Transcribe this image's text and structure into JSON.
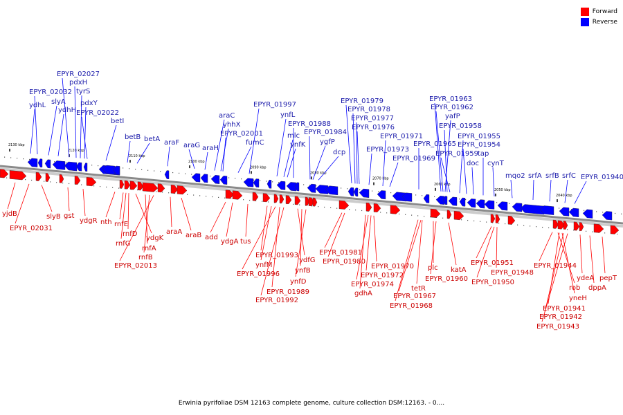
{
  "legend": {
    "forward_label": "Forward",
    "reverse_label": "Reverse",
    "forward_color": "#ff0000",
    "reverse_color": "#0000ff"
  },
  "footer": {
    "caption": "Erwinia pyrifoliae DSM 12163 complete genome, culture collection DSM:12163. - 0...."
  },
  "colors": {
    "axis": "#8a8a8a",
    "forward": "#ff0000",
    "reverse": "#0000ff",
    "forward_label": "#cc0000",
    "reverse_label": "#1a1aaa"
  },
  "ticks": [
    "2130 kbp",
    "2120 kbp",
    "2110 kbp",
    "2100 kbp",
    "2090 kbp",
    "2080 kbp",
    "2070 kbp",
    "2060 kbp",
    "2050 kbp",
    "2040 kbp"
  ],
  "reverse_genes": [
    "ydhL",
    "EPYR_02032",
    "slyA",
    "ydhH",
    "EPYR_02027",
    "pdxH",
    "tyrS",
    "pdxY",
    "EPYR_02022",
    "betI",
    "betB",
    "betA",
    "araF",
    "araG",
    "araH",
    "araC",
    "yhhX",
    "EPYR_02001",
    "fumC",
    "EPYR_01997",
    "ynfL",
    "mlc",
    "ynfK",
    "EPYR_01988",
    "EPYR_01984",
    "ygfP",
    "dcp",
    "EPYR_01979",
    "EPYR_01978",
    "EPYR_01977",
    "EPYR_01976",
    "EPYR_01973",
    "EPYR_01971",
    "EPYR_01969",
    "EPYR_01965",
    "EPYR_01963",
    "EPYR_01962",
    "yafP",
    "EPYR_01958",
    "EPYR_01959",
    "EPYR_01955",
    "EPYR_01954",
    "doc",
    "tap",
    "cynT",
    "mqo2",
    "srfA",
    "srfB",
    "srfC",
    "EPYR_01940"
  ],
  "forward_genes": [
    "yjdB",
    "EPYR_02031",
    "slyB",
    "gst",
    "ydgR",
    "nth",
    "rnfE",
    "rnfG",
    "rnfD",
    "ydgK",
    "rnfA",
    "rnfB",
    "EPYR_02013",
    "araA",
    "araB",
    "add",
    "ydgA",
    "tus",
    "EPYR_01993",
    "ynfM",
    "EPYR_01996",
    "EPYR_01989",
    "EPYR_01992",
    "ydfG",
    "ynfB",
    "ynfD",
    "EPYR_01981",
    "EPYR_01980",
    "EPYR_01970",
    "EPYR_01972",
    "EPYR_01974",
    "gdhA",
    "tetR",
    "EPYR_01967",
    "EPYR_01968",
    "plc",
    "EPYR_01960",
    "katA",
    "EPYR_01951",
    "EPYR_01948",
    "EPYR_01950",
    "EPYR_01944",
    "rob",
    "yneH",
    "ydeA",
    "dppA",
    "pepT",
    "EPYR_01941",
    "EPYR_01942",
    "EPYR_01943"
  ]
}
